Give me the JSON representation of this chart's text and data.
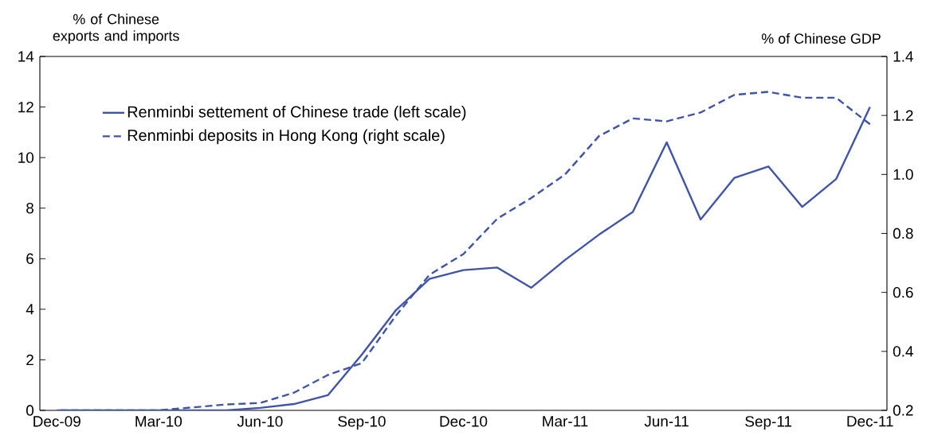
{
  "chart_data": {
    "type": "line",
    "ylabel": "% of Chinese exports and imports",
    "y2label": "% of Chinese GDP",
    "categories": [
      "Dec-09",
      null,
      null,
      "Mar-10",
      null,
      null,
      "Jun-10",
      null,
      null,
      "Sep-10",
      null,
      null,
      "Dec-10",
      null,
      null,
      "Mar-11",
      null,
      null,
      "Jun-11",
      null,
      null,
      "Sep-11",
      null,
      null,
      "Dec-11"
    ],
    "series": [
      {
        "name": "Renminbi settement of Chinese trade (left scale)",
        "color": "#3f54a8",
        "line_style": "solid",
        "values": [
          0,
          0,
          0,
          0,
          0,
          0,
          0.1,
          0.25,
          0.6,
          2.2,
          3.95,
          5.2,
          5.55,
          5.65,
          4.85,
          5.95,
          6.95,
          7.85,
          10.6,
          7.55,
          9.2,
          9.65,
          8.05,
          9.15,
          12.0
        ]
      },
      {
        "name": "Renminbi deposits in Hong Kong (right scale)",
        "color": "#3f54a8",
        "line_style": "dashed",
        "axis": "y2",
        "values": [
          0.2,
          0.2,
          0.2,
          0.2,
          0.21,
          0.22,
          0.225,
          0.26,
          0.32,
          0.36,
          0.52,
          0.66,
          0.73,
          0.85,
          0.92,
          1.0,
          1.13,
          1.19,
          1.18,
          1.21,
          1.27,
          1.28,
          1.26,
          1.26,
          1.17
        ]
      }
    ],
    "ylim": [
      0,
      14
    ],
    "yticks": [
      0,
      2,
      4,
      6,
      8,
      10,
      12,
      14
    ],
    "y2lim": [
      0.2,
      1.4
    ],
    "y2ticks": [
      0.2,
      0.4,
      0.6,
      0.8,
      {
        "value": 1,
        "label": "1.0"
      },
      1.2,
      1.4
    ],
    "legend": "top left",
    "grid": false,
    "marker": "none"
  }
}
